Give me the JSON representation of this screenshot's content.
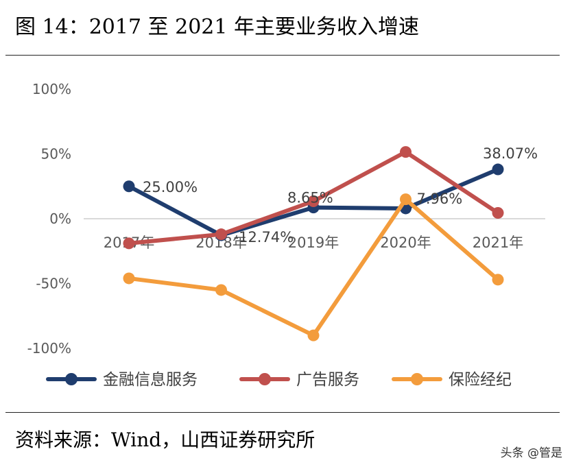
{
  "header": {
    "title": "图 14：2017 至 2021 年主要业务收入增速"
  },
  "footer": {
    "source": "资料来源：Wind，山西证券研究所",
    "watermark": "头条 @管是"
  },
  "chart_data": {
    "type": "line",
    "title": "图 14：2017 至 2021 年主要业务收入增速",
    "xlabel": "",
    "ylabel": "",
    "categories": [
      "2017年",
      "2018年",
      "2019年",
      "2020年",
      "2021年"
    ],
    "ylim": [
      -100,
      100
    ],
    "yticks": [
      100,
      50,
      0,
      -50,
      -100
    ],
    "ytick_labels": [
      "100%",
      "50%",
      "0%",
      "-50%",
      "-100%"
    ],
    "grid": false,
    "legend_position": "bottom",
    "series": [
      {
        "name": "金融信息服务",
        "color": "#1f3d6e",
        "values": [
          25.0,
          -12.74,
          8.65,
          7.96,
          38.07
        ],
        "labels": [
          "25.00%",
          "-12.74%",
          "8.65%",
          "7.96%",
          "38.07%"
        ]
      },
      {
        "name": "广告服务",
        "color": "#c0504d",
        "values": [
          -19,
          -12,
          13.5,
          51.5,
          4.5
        ]
      },
      {
        "name": "保险经纪",
        "color": "#f39c3c",
        "values": [
          -46,
          -55,
          -90,
          15,
          -47
        ]
      }
    ]
  }
}
